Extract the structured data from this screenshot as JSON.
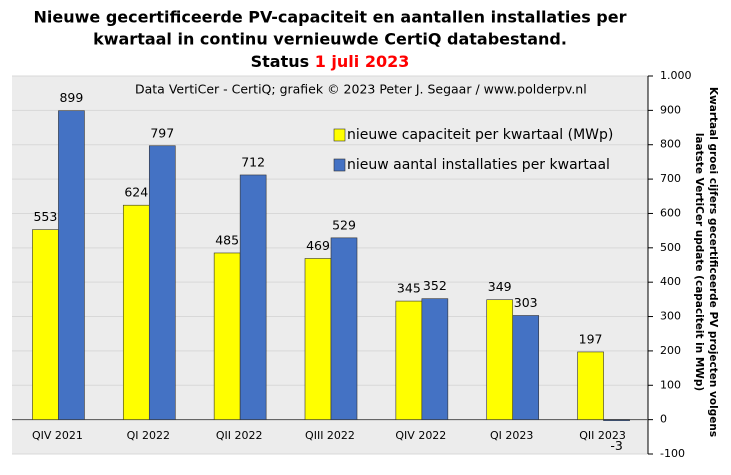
{
  "chart_data": {
    "type": "bar",
    "title": [
      "Nieuwe gecertificeerde PV-capaciteit en aantallen installaties per",
      "kwartaal in continu vernieuwde CertiQ databestand."
    ],
    "status_label": "Status",
    "status_date": "1 juli 2023",
    "source": "Data VertiCer - CertiQ; grafiek © 2023 Peter J. Segaar / www.polderpv.nl",
    "y_label": [
      "Kwartaal groei cijfers gecertificeerde PV projecten volgens",
      "laatste VertiCer update (capaciteit in MWp)"
    ],
    "categories": [
      "QIV 2021",
      "QI 2022",
      "QII 2022",
      "QIII 2022",
      "QIV 2022",
      "QI 2023",
      "QII 2023"
    ],
    "series": [
      {
        "name": "nieuwe capaciteit per kwartaal (MWp)",
        "color": "#ffff00",
        "values": [
          553,
          624,
          485,
          469,
          345,
          349,
          197
        ]
      },
      {
        "name": "nieuw aantal installaties per kwartaal",
        "color": "#4472c4",
        "values": [
          899,
          797,
          712,
          529,
          352,
          303,
          -3
        ]
      }
    ],
    "ylim": [
      -100,
      1000
    ],
    "yticks": [
      -100,
      0,
      100,
      200,
      300,
      400,
      500,
      600,
      700,
      800,
      900,
      {
        "value": 1000,
        "label": "1.000"
      }
    ],
    "grid": true
  }
}
